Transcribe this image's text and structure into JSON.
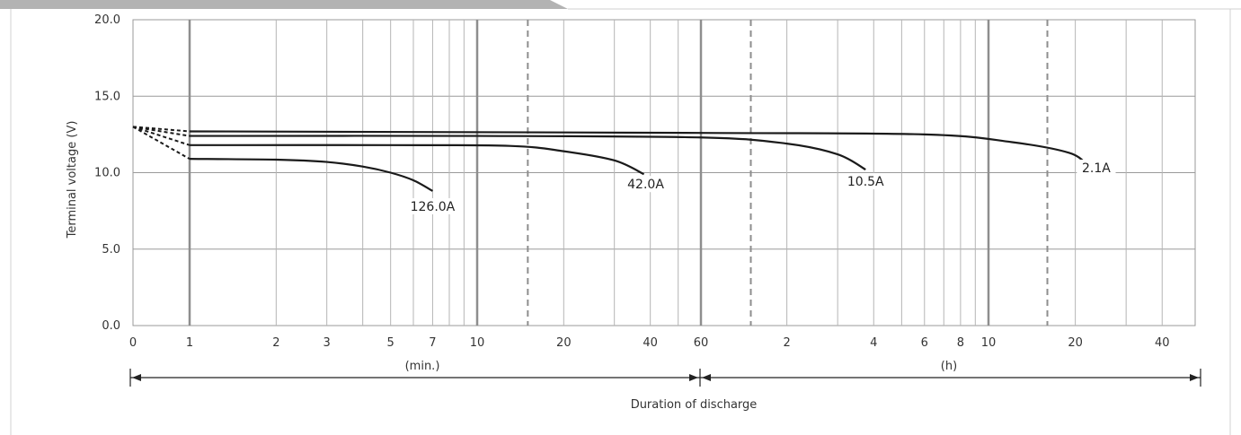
{
  "chart_data": {
    "type": "line",
    "title": "",
    "ylabel": "Terminal voltage (V)",
    "xlabel": "Duration of discharge",
    "ylim": [
      0,
      20
    ],
    "y_ticks": [
      "0.0",
      "5.0",
      "10.0",
      "15.0",
      "20.0"
    ],
    "x_scale": "log",
    "x_units": "minutes",
    "x_ticks_min": [
      {
        "value": 0,
        "label": "0"
      },
      {
        "value": 1,
        "label": "1"
      },
      {
        "value": 2,
        "label": "2"
      },
      {
        "value": 3,
        "label": "3"
      },
      {
        "value": 5,
        "label": "5"
      },
      {
        "value": 7,
        "label": "7"
      },
      {
        "value": 10,
        "label": "10"
      },
      {
        "value": 20,
        "label": "20"
      },
      {
        "value": 40,
        "label": "40"
      },
      {
        "value": 60,
        "label": "60"
      }
    ],
    "x_ticks_h": [
      {
        "value": 2,
        "label": "2"
      },
      {
        "value": 4,
        "label": "4"
      },
      {
        "value": 6,
        "label": "6"
      },
      {
        "value": 8,
        "label": "8"
      },
      {
        "value": 10,
        "label": "10"
      },
      {
        "value": 20,
        "label": "20"
      },
      {
        "value": 40,
        "label": "40"
      }
    ],
    "range_labels": {
      "minutes": "(min.)",
      "hours": "(h)"
    },
    "grid": true,
    "series": [
      {
        "name": "126.0A",
        "start_voltage": 13.0,
        "points": [
          [
            1,
            10.9
          ],
          [
            2,
            10.85
          ],
          [
            3,
            10.7
          ],
          [
            4,
            10.4
          ],
          [
            5,
            10.0
          ],
          [
            6,
            9.5
          ],
          [
            7,
            8.8
          ]
        ]
      },
      {
        "name": "42.0A",
        "start_voltage": 13.0,
        "points": [
          [
            1,
            11.8
          ],
          [
            5,
            11.8
          ],
          [
            13,
            11.75
          ],
          [
            20,
            11.4
          ],
          [
            30,
            10.8
          ],
          [
            38,
            9.9
          ]
        ]
      },
      {
        "name": "10.5A",
        "start_voltage": 13.0,
        "points": [
          [
            1,
            12.4
          ],
          [
            10,
            12.4
          ],
          [
            60,
            12.3
          ],
          [
            120,
            11.9
          ],
          [
            180,
            11.2
          ],
          [
            225,
            10.2
          ]
        ]
      },
      {
        "name": "2.1A",
        "start_voltage": 13.0,
        "points": [
          [
            1,
            12.7
          ],
          [
            60,
            12.6
          ],
          [
            360,
            12.5
          ],
          [
            720,
            12.0
          ],
          [
            1140,
            11.3
          ],
          [
            1320,
            10.5
          ]
        ]
      }
    ]
  }
}
